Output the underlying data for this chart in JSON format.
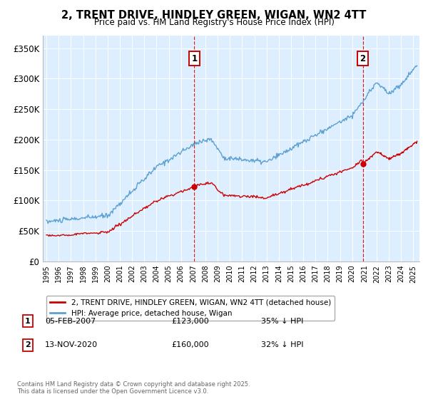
{
  "title": "2, TRENT DRIVE, HINDLEY GREEN, WIGAN, WN2 4TT",
  "subtitle": "Price paid vs. HM Land Registry's House Price Index (HPI)",
  "ylabel_ticks": [
    "£0",
    "£50K",
    "£100K",
    "£150K",
    "£200K",
    "£250K",
    "£300K",
    "£350K"
  ],
  "ytick_values": [
    0,
    50000,
    100000,
    150000,
    200000,
    250000,
    300000,
    350000
  ],
  "ylim": [
    0,
    370000
  ],
  "xlim_start": 1994.7,
  "xlim_end": 2025.5,
  "hpi_color": "#5da0d0",
  "property_color": "#cc0000",
  "vline_color": "#cc0000",
  "background_color": "#ddeeff",
  "annotation1": {
    "x": 2007.09,
    "label": "1",
    "date": "05-FEB-2007",
    "price": "£123,000",
    "hpi_pct": "35% ↓ HPI"
  },
  "annotation2": {
    "x": 2020.87,
    "label": "2",
    "date": "13-NOV-2020",
    "price": "£160,000",
    "hpi_pct": "32% ↓ HPI"
  },
  "legend_property": "2, TRENT DRIVE, HINDLEY GREEN, WIGAN, WN2 4TT (detached house)",
  "legend_hpi": "HPI: Average price, detached house, Wigan",
  "footnote": "Contains HM Land Registry data © Crown copyright and database right 2025.\nThis data is licensed under the Open Government Licence v3.0."
}
